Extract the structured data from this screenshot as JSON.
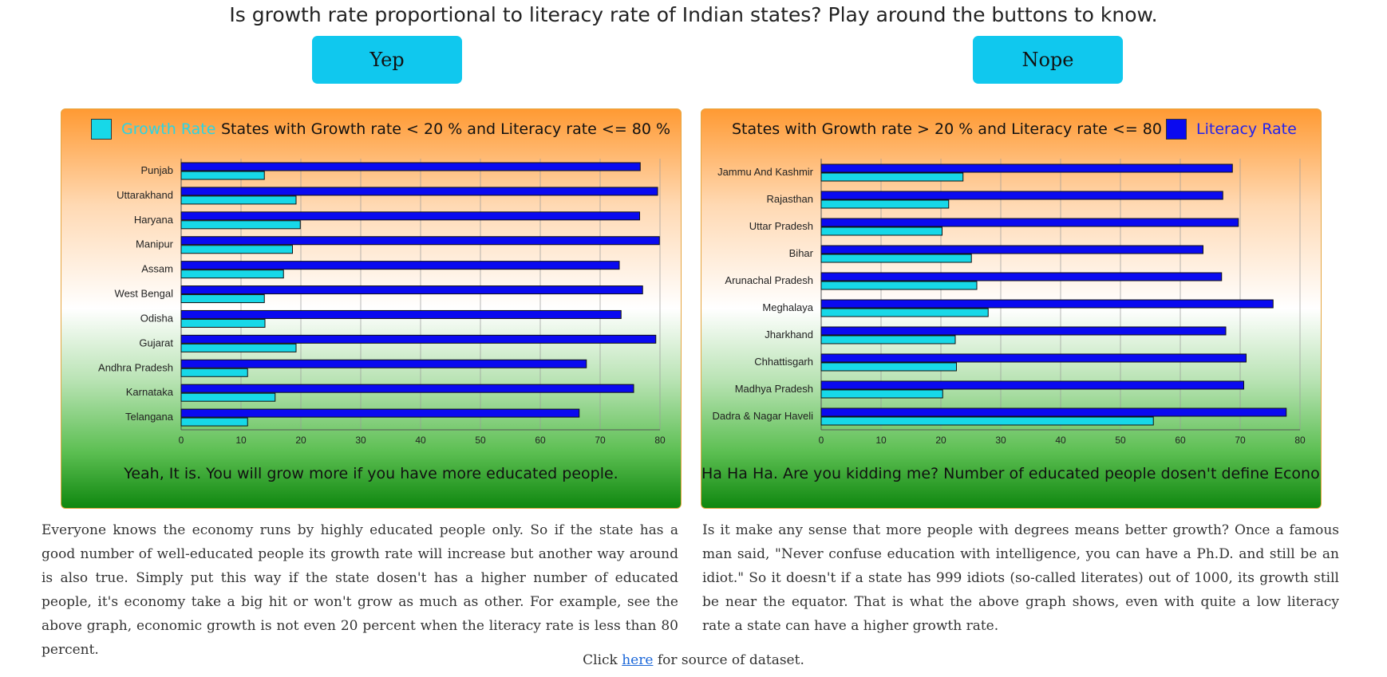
{
  "page": {
    "heading": "Is growth rate proportional to literacy rate of Indian states? Play around the buttons to know.",
    "yep_label": "Yep",
    "nope_label": "Nope",
    "source_prefix": "Click ",
    "source_link": "here",
    "source_suffix": " for source of dataset."
  },
  "colors": {
    "growth": "#17d8e8",
    "literacy": "#0a0af0",
    "button": "#10c8ee",
    "legend_growth_text": "#2ad4e4",
    "legend_literacy_text": "#2222ee"
  },
  "left_panel": {
    "legend_label": "Growth Rate",
    "title": "States with Growth rate < 20 % and Literacy rate <= 80 %",
    "caption": "Yeah, It is. You will grow more if you have more educated people.",
    "paragraph": "Everyone knows the economy runs by highly educated people only. So if the state has a good number of well-educated people its growth rate will increase but another way around is also true. Simply put this way if the state dosen't has a higher number of educated people, it's economy take a big hit or won't grow as much as other. For example, see the above graph, economic growth is not even 20 percent when the literacy rate is less than 80 percent."
  },
  "right_panel": {
    "legend_label": "Literacy Rate",
    "title": "States with Growth rate > 20 % and Literacy rate <= 80 %",
    "caption": "Ha Ha Ha. Are you kidding me? Number of educated people dosen't define Economy.",
    "paragraph": "Is it make any sense that more people with degrees means better growth? Once a famous man said, \"Never confuse education with intelligence, you can have a Ph.D. and still be an idiot.\" So it doesn't if a state has 999 idiots (so-called literates) out of 1000, its growth still be near the equator. That is what the above graph shows, even with quite a low literacy rate a state can have a higher growth rate."
  },
  "chart_data": [
    {
      "type": "bar",
      "orientation": "horizontal",
      "title": "States with Growth rate < 20 % and Literacy rate <= 80 %",
      "categories": [
        "Punjab",
        "Uttarakhand",
        "Haryana",
        "Manipur",
        "Assam",
        "West Bengal",
        "Odisha",
        "Gujarat",
        "Andhra Pradesh",
        "Karnataka",
        "Telangana"
      ],
      "series": [
        {
          "name": "Literacy Rate",
          "values": [
            76.7,
            79.6,
            76.6,
            79.9,
            73.2,
            77.1,
            73.5,
            79.3,
            67.7,
            75.6,
            66.5
          ]
        },
        {
          "name": "Growth Rate",
          "values": [
            13.9,
            19.2,
            19.9,
            18.6,
            17.1,
            13.9,
            14.0,
            19.2,
            11.1,
            15.7,
            11.1
          ]
        }
      ],
      "xlim": [
        0,
        80
      ],
      "xticks": [
        0,
        10,
        20,
        30,
        40,
        50,
        60,
        70,
        80
      ],
      "grid": true,
      "legend": "top-left"
    },
    {
      "type": "bar",
      "orientation": "horizontal",
      "title": "States with Growth rate > 20 % and Literacy rate <= 80 %",
      "categories": [
        "Jammu And Kashmir",
        "Rajasthan",
        "Uttar Pradesh",
        "Bihar",
        "Arunachal Pradesh",
        "Meghalaya",
        "Jharkhand",
        "Chhattisgarh",
        "Madhya Pradesh",
        "Dadra & Nagar Haveli"
      ],
      "series": [
        {
          "name": "Literacy Rate",
          "values": [
            68.7,
            67.1,
            69.7,
            63.8,
            66.9,
            75.5,
            67.6,
            71.0,
            70.6,
            77.7
          ]
        },
        {
          "name": "Growth Rate",
          "values": [
            23.7,
            21.3,
            20.2,
            25.1,
            26.0,
            27.9,
            22.4,
            22.6,
            20.3,
            55.5
          ]
        }
      ],
      "xlim": [
        0,
        80
      ],
      "xticks": [
        0,
        10,
        20,
        30,
        40,
        50,
        60,
        70,
        80
      ],
      "grid": true,
      "legend": "top-right"
    }
  ]
}
